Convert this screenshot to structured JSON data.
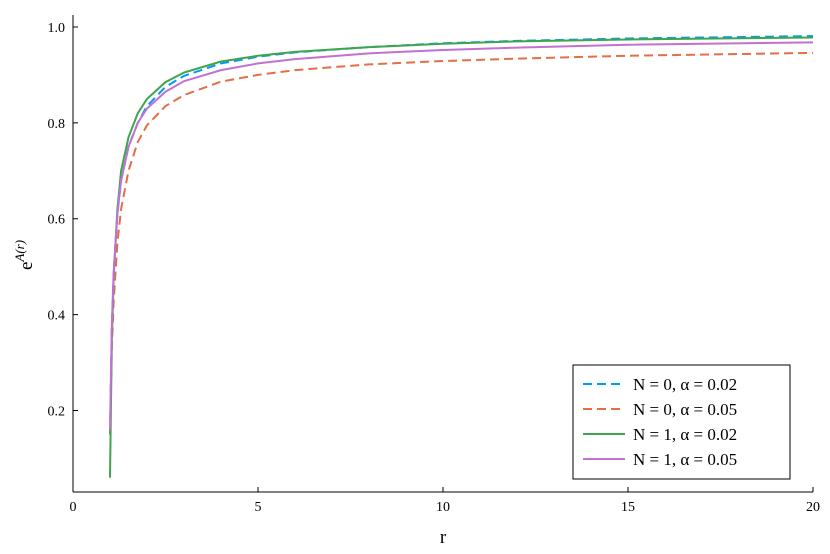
{
  "chart_data": {
    "type": "line",
    "xlabel": "r",
    "ylabel": {
      "base": "e",
      "superscript": "A(r)"
    },
    "x": [
      1,
      1.05,
      1.1,
      1.2,
      1.3,
      1.5,
      1.75,
      2,
      2.5,
      3,
      4,
      5,
      6,
      8,
      10,
      12,
      15,
      20
    ],
    "series": [
      {
        "name": "N = 0, α = 0.02",
        "color": "#009afa",
        "dashed": true,
        "values": [
          0.15,
          0.38,
          0.49,
          0.61,
          0.68,
          0.75,
          0.8,
          0.835,
          0.875,
          0.898,
          0.924,
          0.938,
          0.947,
          0.958,
          0.966,
          0.971,
          0.976,
          0.981
        ]
      },
      {
        "name": "N = 0, α = 0.05",
        "color": "#e26f46",
        "dashed": true,
        "values": [
          0.15,
          0.33,
          0.43,
          0.55,
          0.62,
          0.7,
          0.76,
          0.795,
          0.835,
          0.858,
          0.886,
          0.9,
          0.91,
          0.922,
          0.929,
          0.934,
          0.94,
          0.946
        ]
      },
      {
        "name": "N = 1, α = 0.02",
        "color": "#3ea44e",
        "dashed": false,
        "values": [
          0.06,
          0.35,
          0.48,
          0.62,
          0.7,
          0.77,
          0.82,
          0.85,
          0.885,
          0.905,
          0.928,
          0.94,
          0.948,
          0.958,
          0.965,
          0.97,
          0.974,
          0.978
        ]
      },
      {
        "name": "N = 1, α = 0.05",
        "color": "#c271d2",
        "dashed": false,
        "values": [
          0.16,
          0.38,
          0.49,
          0.61,
          0.68,
          0.75,
          0.8,
          0.83,
          0.865,
          0.887,
          0.91,
          0.924,
          0.933,
          0.945,
          0.952,
          0.957,
          0.963,
          0.968
        ]
      }
    ],
    "xlim": [
      0,
      20
    ],
    "xticks": [
      0,
      5,
      10,
      15,
      20
    ],
    "ylim": [
      0.03,
      1.025
    ],
    "yticks": [
      0.2,
      0.4,
      0.6,
      0.8,
      {
        "value": 1,
        "label": "1.0"
      }
    ],
    "legend": "bottom-right"
  }
}
